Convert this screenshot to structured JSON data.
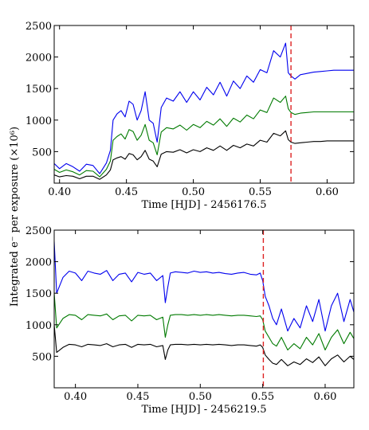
{
  "figure": {
    "ylabel_shared": "Integrated e⁻ per exposure (×10⁶)"
  },
  "chart_data": [
    {
      "type": "line",
      "title": "",
      "xlabel": "Time [HJD] - 2456176.5",
      "ylabel": "",
      "xlim": [
        0.396,
        0.62
      ],
      "ylim": [
        0,
        2500
      ],
      "xticks": [
        0.4,
        0.45,
        0.5,
        0.55,
        0.6
      ],
      "xtick_labels": [
        "0.40",
        "0.45",
        "0.50",
        "0.55",
        "0.60"
      ],
      "yticks": [
        500,
        1000,
        1500,
        2000,
        2500
      ],
      "ytick_labels": [
        "500",
        "1000",
        "1500",
        "2000",
        "2500"
      ],
      "grid": false,
      "markers": [
        {
          "type": "vline",
          "x": 0.573,
          "color": "#dd2222",
          "style": "dashed"
        }
      ],
      "x": [
        0.396,
        0.4,
        0.405,
        0.41,
        0.415,
        0.42,
        0.425,
        0.43,
        0.435,
        0.438,
        0.44,
        0.443,
        0.446,
        0.449,
        0.452,
        0.455,
        0.458,
        0.461,
        0.464,
        0.467,
        0.47,
        0.473,
        0.476,
        0.48,
        0.485,
        0.49,
        0.495,
        0.5,
        0.505,
        0.51,
        0.515,
        0.52,
        0.525,
        0.53,
        0.535,
        0.54,
        0.545,
        0.55,
        0.555,
        0.56,
        0.565,
        0.569,
        0.571,
        0.573,
        0.576,
        0.58,
        0.585,
        0.59,
        0.595,
        0.6,
        0.605,
        0.61,
        0.615,
        0.62
      ],
      "series": [
        {
          "color": "#0000ee",
          "values": [
            310,
            230,
            310,
            260,
            190,
            300,
            280,
            150,
            320,
            520,
            1000,
            1100,
            1150,
            1050,
            1300,
            1250,
            1000,
            1150,
            1450,
            1000,
            950,
            650,
            1200,
            1350,
            1300,
            1450,
            1280,
            1450,
            1320,
            1520,
            1400,
            1600,
            1380,
            1620,
            1500,
            1700,
            1600,
            1800,
            1750,
            2100,
            2000,
            2220,
            1750,
            1700,
            1650,
            1720,
            1740,
            1760,
            1770,
            1780,
            1790,
            1790,
            1790,
            1790
          ]
        },
        {
          "color": "#007a00",
          "values": [
            220,
            170,
            210,
            180,
            130,
            200,
            190,
            100,
            220,
            350,
            680,
            740,
            780,
            700,
            850,
            820,
            680,
            760,
            930,
            680,
            640,
            450,
            810,
            880,
            860,
            920,
            840,
            930,
            880,
            980,
            920,
            1020,
            900,
            1030,
            970,
            1080,
            1020,
            1160,
            1120,
            1350,
            1280,
            1380,
            1180,
            1120,
            1090,
            1110,
            1120,
            1130,
            1130,
            1130,
            1130,
            1130,
            1130,
            1130
          ]
        },
        {
          "color": "#000000",
          "values": [
            130,
            100,
            120,
            110,
            70,
            110,
            110,
            60,
            130,
            210,
            370,
            400,
            420,
            380,
            470,
            450,
            370,
            420,
            520,
            380,
            350,
            260,
            460,
            500,
            490,
            530,
            480,
            530,
            500,
            560,
            520,
            590,
            520,
            600,
            560,
            620,
            590,
            680,
            650,
            790,
            750,
            830,
            690,
            650,
            630,
            640,
            650,
            660,
            660,
            670,
            670,
            670,
            670,
            670
          ]
        }
      ]
    },
    {
      "type": "line",
      "title": "",
      "xlabel": "Time [HJD] - 2456219.5",
      "ylabel": "",
      "xlim": [
        0.383,
        0.623
      ],
      "ylim": [
        0,
        2500
      ],
      "xticks": [
        0.4,
        0.45,
        0.5,
        0.55,
        0.6
      ],
      "xtick_labels": [
        "0.40",
        "0.45",
        "0.50",
        "0.55",
        "0.60"
      ],
      "yticks": [
        500,
        1000,
        1500,
        2000,
        2500
      ],
      "ytick_labels": [
        "500",
        "1000",
        "1500",
        "2000",
        "2500"
      ],
      "grid": false,
      "markers": [
        {
          "type": "vline",
          "x": 0.5505,
          "color": "#dd2222",
          "style": "dashed"
        }
      ],
      "x": [
        0.383,
        0.385,
        0.39,
        0.395,
        0.4,
        0.405,
        0.41,
        0.415,
        0.42,
        0.425,
        0.43,
        0.435,
        0.44,
        0.445,
        0.45,
        0.455,
        0.46,
        0.465,
        0.47,
        0.472,
        0.474,
        0.476,
        0.48,
        0.485,
        0.49,
        0.495,
        0.5,
        0.505,
        0.51,
        0.515,
        0.52,
        0.525,
        0.53,
        0.535,
        0.54,
        0.545,
        0.548,
        0.55,
        0.552,
        0.555,
        0.558,
        0.561,
        0.565,
        0.57,
        0.575,
        0.58,
        0.585,
        0.59,
        0.595,
        0.6,
        0.605,
        0.61,
        0.615,
        0.62,
        0.623
      ],
      "series": [
        {
          "color": "#0000ee",
          "values": [
            2320,
            1500,
            1750,
            1850,
            1820,
            1700,
            1850,
            1820,
            1800,
            1860,
            1700,
            1800,
            1820,
            1680,
            1830,
            1800,
            1820,
            1700,
            1780,
            1350,
            1600,
            1820,
            1840,
            1830,
            1820,
            1850,
            1830,
            1840,
            1820,
            1830,
            1810,
            1800,
            1820,
            1830,
            1800,
            1790,
            1820,
            1700,
            1450,
            1300,
            1100,
            1000,
            1250,
            900,
            1100,
            950,
            1300,
            1050,
            1400,
            900,
            1300,
            1500,
            1050,
            1400,
            1200
          ]
        },
        {
          "color": "#007a00",
          "values": [
            1500,
            950,
            1100,
            1160,
            1150,
            1080,
            1160,
            1150,
            1140,
            1170,
            1080,
            1140,
            1150,
            1060,
            1150,
            1140,
            1150,
            1080,
            1120,
            800,
            1000,
            1150,
            1160,
            1160,
            1150,
            1160,
            1150,
            1160,
            1150,
            1160,
            1150,
            1140,
            1150,
            1150,
            1140,
            1130,
            1140,
            1080,
            900,
            800,
            700,
            660,
            800,
            600,
            700,
            620,
            800,
            680,
            860,
            600,
            800,
            920,
            700,
            880,
            780
          ]
        },
        {
          "color": "#000000",
          "values": [
            1000,
            560,
            640,
            690,
            680,
            650,
            690,
            680,
            670,
            700,
            650,
            680,
            690,
            640,
            690,
            680,
            690,
            650,
            670,
            450,
            600,
            680,
            690,
            690,
            680,
            690,
            680,
            690,
            680,
            690,
            680,
            670,
            680,
            680,
            670,
            660,
            680,
            640,
            520,
            450,
            390,
            370,
            450,
            350,
            410,
            370,
            460,
            400,
            490,
            350,
            460,
            520,
            410,
            500,
            450
          ]
        }
      ]
    }
  ]
}
